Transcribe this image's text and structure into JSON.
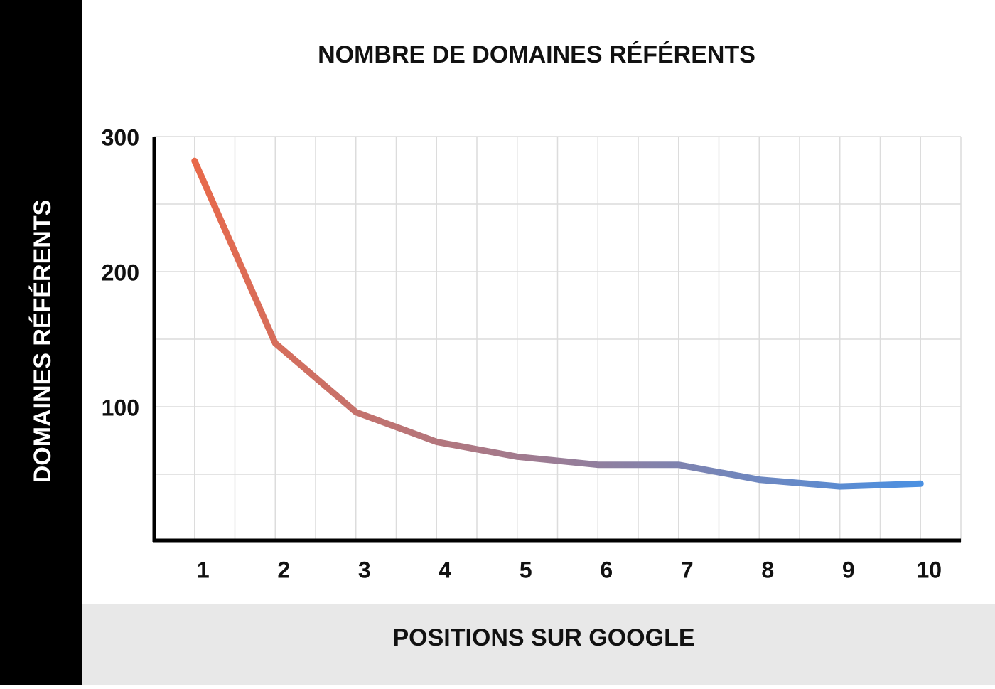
{
  "chart_data": {
    "type": "line",
    "title": "NOMBRE DE DOMAINES RÉFÉRENTS",
    "x_label": "POSITIONS SUR GOOGLE",
    "y_label": "DOMAINES RÉFÉRENTS",
    "categories": [
      "1",
      "2",
      "3",
      "4",
      "5",
      "6",
      "7",
      "8",
      "9",
      "10"
    ],
    "values": [
      282,
      147,
      96,
      74,
      63,
      57,
      57,
      46,
      41,
      43
    ],
    "color_start": "#e8694a",
    "color_end": "#4a90e2",
    "ylim": [
      0,
      300
    ],
    "yticks": [
      100,
      200,
      300
    ],
    "grid": true,
    "minor_grid": true
  }
}
